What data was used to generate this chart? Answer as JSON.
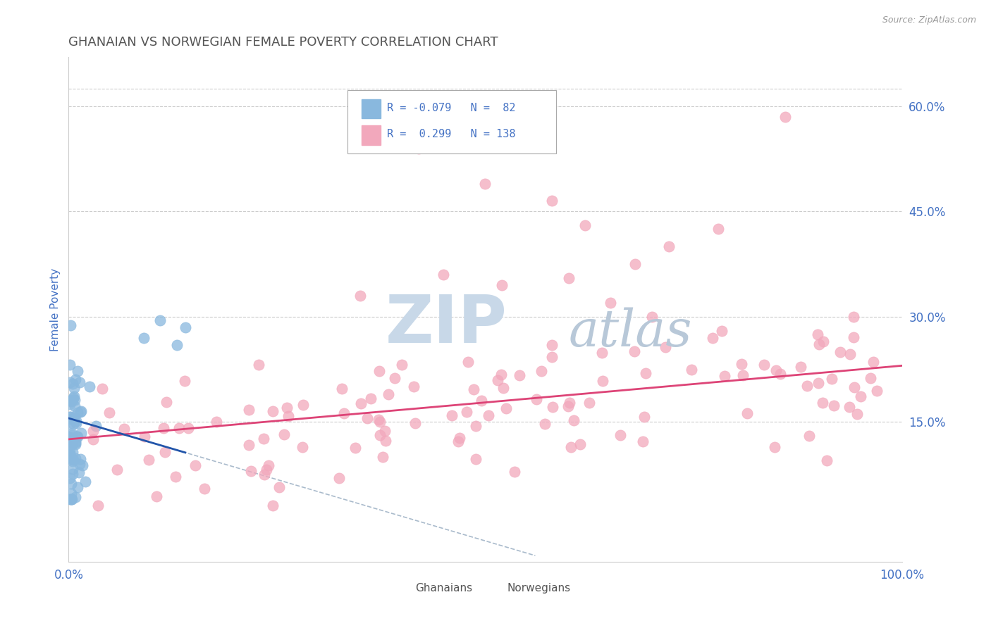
{
  "title": "GHANAIAN VS NORWEGIAN FEMALE POVERTY CORRELATION CHART",
  "source_text": "Source: ZipAtlas.com",
  "ylabel": "Female Poverty",
  "xlim": [
    0,
    1.0
  ],
  "ylim": [
    -0.05,
    0.67
  ],
  "xticks": [
    0.0,
    1.0
  ],
  "xticklabels": [
    "0.0%",
    "100.0%"
  ],
  "yticks": [
    0.15,
    0.3,
    0.45,
    0.6
  ],
  "yticklabels": [
    "15.0%",
    "30.0%",
    "45.0%",
    "60.0%"
  ],
  "grid_color": "#cccccc",
  "background_color": "#ffffff",
  "blue_color": "#89b8de",
  "pink_color": "#f2a8bc",
  "blue_line_color": "#2255aa",
  "pink_line_color": "#dd4477",
  "dashed_line_color": "#aabbcc",
  "R_blue": -0.079,
  "N_blue": 82,
  "R_pink": 0.299,
  "N_pink": 138,
  "title_color": "#555555",
  "axis_label_color": "#4472c4",
  "tick_color": "#4472c4",
  "watermark_zip_color": "#c8d8e8",
  "watermark_atlas_color": "#b8c8d8",
  "legend_text_color": "#4472c4",
  "legend_label_color": "#333333"
}
